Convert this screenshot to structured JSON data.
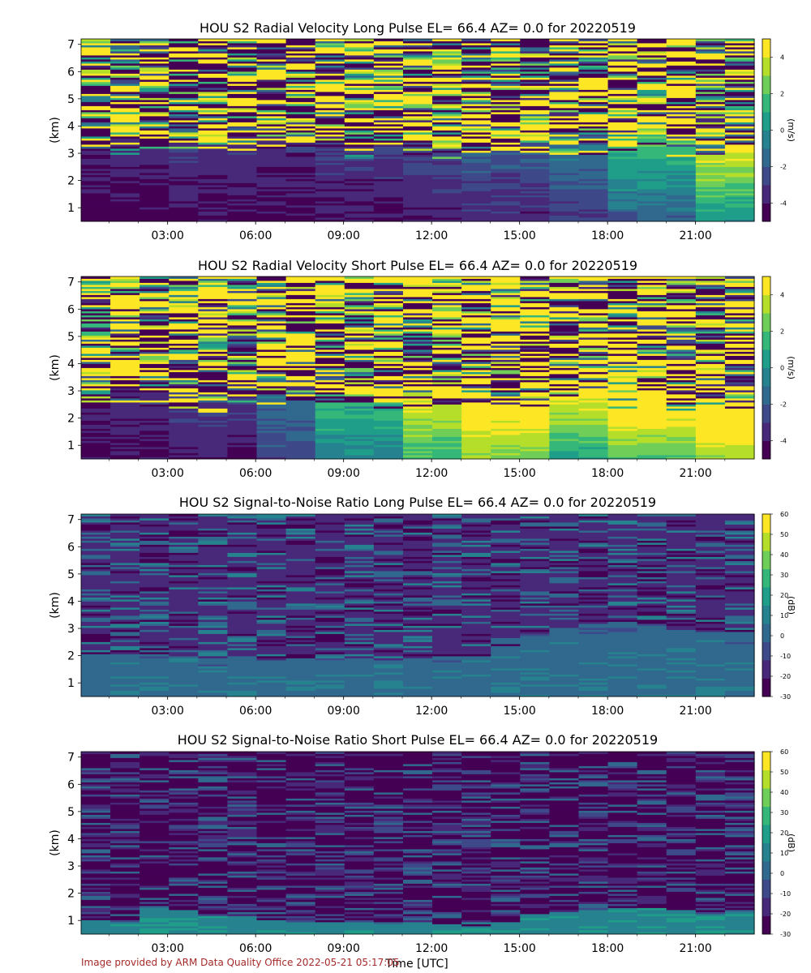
{
  "credit": "Image provided by ARM Data Quality Office 2022-05-21 05:17:05",
  "colors": {
    "viridis": [
      "#440154",
      "#482878",
      "#3e4989",
      "#31688e",
      "#26828e",
      "#1f9e89",
      "#35b779",
      "#6ece58",
      "#b5de2b",
      "#fde725"
    ],
    "credit": "#a52a2a"
  },
  "chart_data": [
    {
      "type": "heatmap",
      "title": "HOU S2 Radial Velocity Long Pulse EL= 66.4 AZ= 0.0 for 20220519",
      "xlabel": "",
      "ylabel": "(km)",
      "colorbar_label": "(m/s)",
      "x_ticks": [
        "03:00",
        "06:00",
        "09:00",
        "12:00",
        "15:00",
        "18:00",
        "21:00"
      ],
      "x_tick_hours": [
        3,
        6,
        9,
        12,
        15,
        18,
        21
      ],
      "xlim_hours": [
        0.05,
        23.0
      ],
      "y_ticks": [
        1,
        2,
        3,
        4,
        5,
        6,
        7
      ],
      "ylim": [
        0.5,
        7.2
      ],
      "clim": [
        -5,
        5
      ],
      "colorbar_ticks": [
        -4,
        -2,
        0,
        2,
        4
      ],
      "pattern": "velocity",
      "seed": 11,
      "noise_floor_km": 3.2,
      "profile": [
        [
          -4.8,
          1.2
        ],
        [
          -4.6,
          1.4
        ],
        [
          -4.7,
          1.3
        ],
        [
          -4.5,
          1.5
        ],
        [
          -4.3,
          1.8
        ],
        [
          -4.0,
          2.0
        ],
        [
          -3.5,
          2.5
        ],
        [
          -2.5,
          4.0
        ],
        [
          -1.0,
          5.5
        ]
      ]
    },
    {
      "type": "heatmap",
      "title": "HOU S2 Radial Velocity Short Pulse EL= 66.4 AZ= 0.0 for 20220519",
      "xlabel": "",
      "ylabel": "(km)",
      "colorbar_label": "(m/s)",
      "x_ticks": [
        "03:00",
        "06:00",
        "09:00",
        "12:00",
        "15:00",
        "18:00",
        "21:00"
      ],
      "x_tick_hours": [
        3,
        6,
        9,
        12,
        15,
        18,
        21
      ],
      "xlim_hours": [
        0.05,
        23.0
      ],
      "y_ticks": [
        1,
        2,
        3,
        4,
        5,
        6,
        7
      ],
      "ylim": [
        0.5,
        7.2
      ],
      "clim": [
        -5,
        5
      ],
      "colorbar_ticks": [
        -4,
        -2,
        0,
        2,
        4
      ],
      "pattern": "velocity",
      "seed": 29,
      "noise_floor_km": 2.6,
      "profile": [
        [
          -4.5,
          0.8
        ],
        [
          -4.0,
          1.0
        ],
        [
          -3.0,
          1.5
        ],
        [
          -1.0,
          2.5
        ],
        [
          1.0,
          3.0
        ],
        [
          2.0,
          3.5
        ],
        [
          0.0,
          4.0
        ],
        [
          1.0,
          4.5
        ],
        [
          2.0,
          5.0
        ]
      ]
    },
    {
      "type": "heatmap",
      "title": "HOU S2 Signal-to-Noise Ratio Long Pulse EL= 66.4 AZ= 0.0 for 20220519",
      "xlabel": "",
      "ylabel": "(km)",
      "colorbar_label": "(dB)",
      "x_ticks": [
        "03:00",
        "06:00",
        "09:00",
        "12:00",
        "15:00",
        "18:00",
        "21:00"
      ],
      "x_tick_hours": [
        3,
        6,
        9,
        12,
        15,
        18,
        21
      ],
      "xlim_hours": [
        0.05,
        23.0
      ],
      "y_ticks": [
        1,
        2,
        3,
        4,
        5,
        6,
        7
      ],
      "ylim": [
        0.5,
        7.2
      ],
      "clim": [
        -30,
        60
      ],
      "colorbar_ticks": [
        -30,
        -20,
        -10,
        0,
        10,
        20,
        30,
        40,
        50,
        60
      ],
      "pattern": "snr",
      "seed": 53,
      "boundary_layer_km": [
        2.1,
        2.1,
        2.0,
        2.0,
        1.95,
        1.9,
        1.9,
        1.9,
        1.9,
        1.9,
        1.9,
        1.9,
        2.0,
        2.0,
        2.4,
        2.8,
        3.0,
        3.1,
        3.1,
        3.2,
        3.0,
        2.9,
        2.9
      ],
      "bl_value": 5,
      "upper_value": -22,
      "upper_mixing_value": 0
    },
    {
      "type": "heatmap",
      "title": "HOU S2 Signal-to-Noise Ratio Short Pulse EL= 66.4 AZ= 0.0 for 20220519",
      "xlabel": "Time [UTC]",
      "ylabel": "(km)",
      "colorbar_label": "(dB)",
      "x_ticks": [
        "03:00",
        "06:00",
        "09:00",
        "12:00",
        "15:00",
        "18:00",
        "21:00"
      ],
      "x_tick_hours": [
        3,
        6,
        9,
        12,
        15,
        18,
        21
      ],
      "xlim_hours": [
        0.05,
        23.0
      ],
      "y_ticks": [
        1,
        2,
        3,
        4,
        5,
        6,
        7
      ],
      "ylim": [
        0.5,
        7.2
      ],
      "clim": [
        -30,
        60
      ],
      "colorbar_ticks": [
        -30,
        -20,
        -10,
        0,
        10,
        20,
        30,
        40,
        50,
        60
      ],
      "pattern": "snr",
      "seed": 77,
      "boundary_layer_km": [
        1.0,
        1.0,
        1.5,
        1.3,
        1.2,
        1.2,
        1.0,
        0.9,
        0.9,
        0.9,
        0.9,
        0.9,
        0.9,
        0.9,
        1.0,
        1.2,
        1.3,
        1.4,
        1.5,
        1.5,
        1.4,
        1.3,
        1.3
      ],
      "bl_value": 15,
      "upper_value": -24,
      "upper_mixing_value": -8
    }
  ]
}
